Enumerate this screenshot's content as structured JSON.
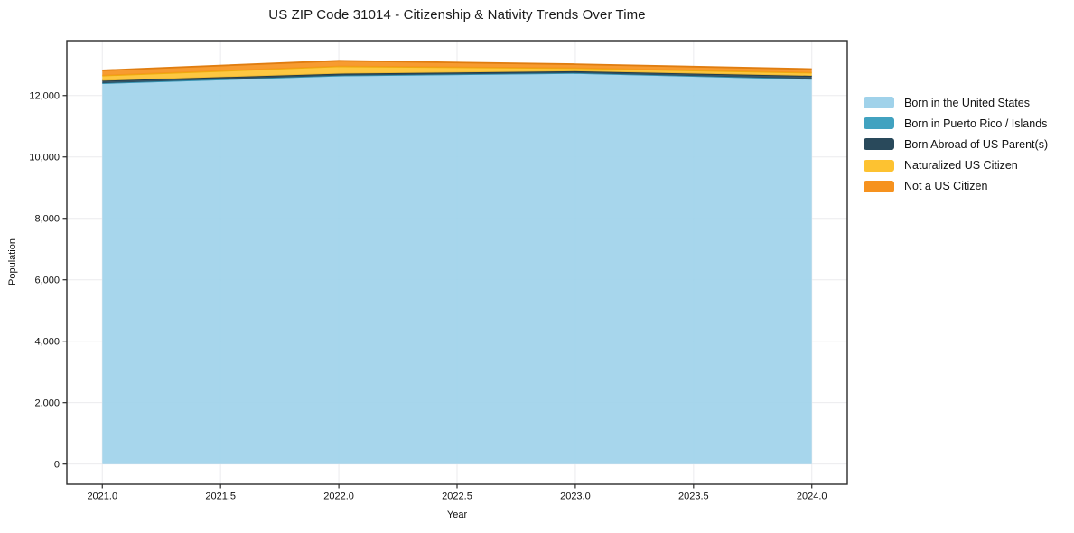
{
  "title": "US ZIP Code 31014 - Citizenship & Nativity Trends Over Time",
  "chart_data": {
    "type": "area",
    "stacked": true,
    "title": "US ZIP Code 31014 - Citizenship & Nativity Trends Over Time",
    "x": [
      2021,
      2022,
      2023,
      2024
    ],
    "series": [
      {
        "name": "Born in the United States",
        "color": "#A0D2EA",
        "line_color": "#7FBEDD",
        "values": [
          12400,
          12650,
          12730,
          12540
        ]
      },
      {
        "name": "Born in Puerto Rico / Islands",
        "color": "#41A2C0",
        "line_color": "#3793B1",
        "values": [
          0,
          0,
          0,
          0
        ]
      },
      {
        "name": "Born Abroad of US Parent(s)",
        "color": "#29495B",
        "line_color": "#1F3A49",
        "values": [
          80,
          60,
          60,
          100
        ]
      },
      {
        "name": "Naturalized US Citizen",
        "color": "#FDC231",
        "line_color": "#EEAC0F",
        "values": [
          170,
          240,
          100,
          100
        ]
      },
      {
        "name": "Not a US Citizen",
        "color": "#F6921E",
        "line_color": "#E07D10",
        "values": [
          170,
          180,
          130,
          120
        ]
      }
    ],
    "stack_totals": [
      12820,
      13130,
      13020,
      12860
    ],
    "x_axis": {
      "label": "Year",
      "ticks": [
        2021.0,
        2021.5,
        2022.0,
        2022.5,
        2023.0,
        2023.5,
        2024.0
      ],
      "tick_labels": [
        "2021.0",
        "2021.5",
        "2022.0",
        "2022.5",
        "2023.0",
        "2023.5",
        "2024.0"
      ],
      "range": [
        2020.85,
        2024.15
      ]
    },
    "y_axis": {
      "label": "Population",
      "ticks": [
        0,
        2000,
        4000,
        6000,
        8000,
        10000,
        12000
      ],
      "tick_labels": [
        "0",
        "2,000",
        "4,000",
        "6,000",
        "8,000",
        "10,000",
        "12,000"
      ],
      "range": [
        -657,
        13787
      ]
    },
    "grid": true,
    "legend_position": "right-outside",
    "background_color": "#ffffff"
  }
}
